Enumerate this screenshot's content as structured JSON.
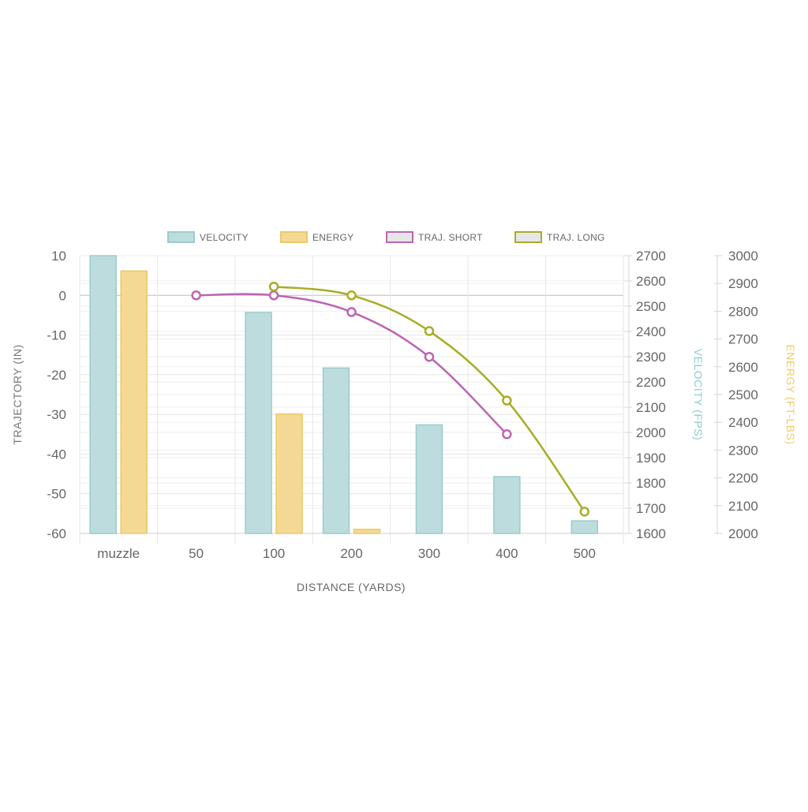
{
  "chart_data": {
    "type": "bar",
    "title": "",
    "categories": [
      "muzzle",
      "50",
      "100",
      "200",
      "300",
      "400",
      "500"
    ],
    "xlabel": "DISTANCE (YARDS)",
    "bar_series": [
      {
        "name": "VELOCITY",
        "axis": "velocity",
        "color": "#bcdcdd",
        "border": "#9dcbcc",
        "values": [
          2700,
          null,
          2475,
          2255,
          2030,
          1825,
          1650
        ]
      },
      {
        "name": "ENERGY",
        "axis": "energy",
        "color": "#f3d993",
        "border": "#ecc96a",
        "values": [
          null,
          null,
          null,
          2015,
          null,
          null,
          null
        ],
        "muzzle_value": 2945,
        "hundred_value": 2430
      }
    ],
    "line_series": [
      {
        "name": "TRAJ. SHORT",
        "axis": "trajectory",
        "color": "#bd65b2",
        "values": [
          null,
          0,
          0,
          -4.2,
          -15.5,
          -35,
          null
        ]
      },
      {
        "name": "TRAJ. LONG",
        "axis": "trajectory",
        "color": "#a7ad25",
        "values": [
          null,
          null,
          2.2,
          0,
          -9,
          -26.5,
          -54.5
        ]
      }
    ],
    "axes": {
      "trajectory": {
        "label": "TRAJECTORY (IN)",
        "range": [
          -60,
          10
        ],
        "ticks": [
          "10",
          "0",
          "-10",
          "-20",
          "-30",
          "-40",
          "-50",
          "-60"
        ],
        "color": "#777777"
      },
      "velocity": {
        "label": "VELOCITY (FPS)",
        "range": [
          1600,
          2700
        ],
        "ticks": [
          "2700",
          "2600",
          "2500",
          "2400",
          "2300",
          "2200",
          "2100",
          "2000",
          "1900",
          "1800",
          "1700",
          "1600"
        ],
        "color": "#8ccccc"
      },
      "energy": {
        "label": "ENERGY (FT-LBS)",
        "range": [
          2000,
          3000
        ],
        "ticks": [
          "3000",
          "2900",
          "2800",
          "2700",
          "2600",
          "2500",
          "2400",
          "2300",
          "2200",
          "2100",
          "2000"
        ],
        "color": "#efcc6b"
      }
    },
    "legend": {
      "placement": "top",
      "items": [
        {
          "label": "VELOCITY",
          "fill": "#bcdcdd",
          "stroke": "#9dcbcc"
        },
        {
          "label": "ENERGY",
          "fill": "#f3d993",
          "stroke": "#ecc96a"
        },
        {
          "label": "TRAJ. SHORT",
          "fill": "#e6e6e6",
          "stroke": "#bd65b2"
        },
        {
          "label": "TRAJ. LONG",
          "fill": "#e6e6e6",
          "stroke": "#a7ad25"
        }
      ]
    },
    "grid": true
  }
}
